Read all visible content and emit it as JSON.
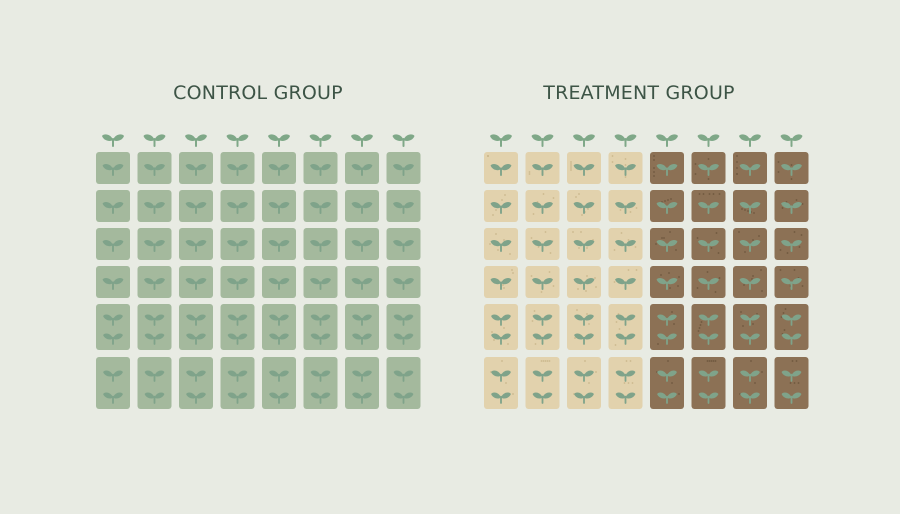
{
  "control": {
    "title": "CONTROL GROUP",
    "columns": 8,
    "row_plants": [
      1,
      1,
      1,
      1,
      2,
      2
    ],
    "cell_colors": [
      "#a4b99d",
      "#a4b99d",
      "#a4b99d",
      "#a4b99d",
      "#a4b99d",
      "#a4b99d",
      "#a4b99d",
      "#a4b99d"
    ],
    "speckled": false
  },
  "treatment": {
    "title": "TREATMENT GROUP",
    "columns": 8,
    "row_plants": [
      1,
      1,
      1,
      1,
      2,
      2
    ],
    "cell_colors": [
      "#e2d2ad",
      "#e2d2ad",
      "#e2d2ad",
      "#e2d2ad",
      "#8c7155",
      "#8c7155",
      "#8c7155",
      "#8c7155"
    ],
    "speckled": true
  },
  "colors": {
    "background": "#e8ebe3",
    "sprout_top": "#7fa888",
    "sprout_in_cell": "#7fa38a",
    "title_text": "#3d5446"
  }
}
